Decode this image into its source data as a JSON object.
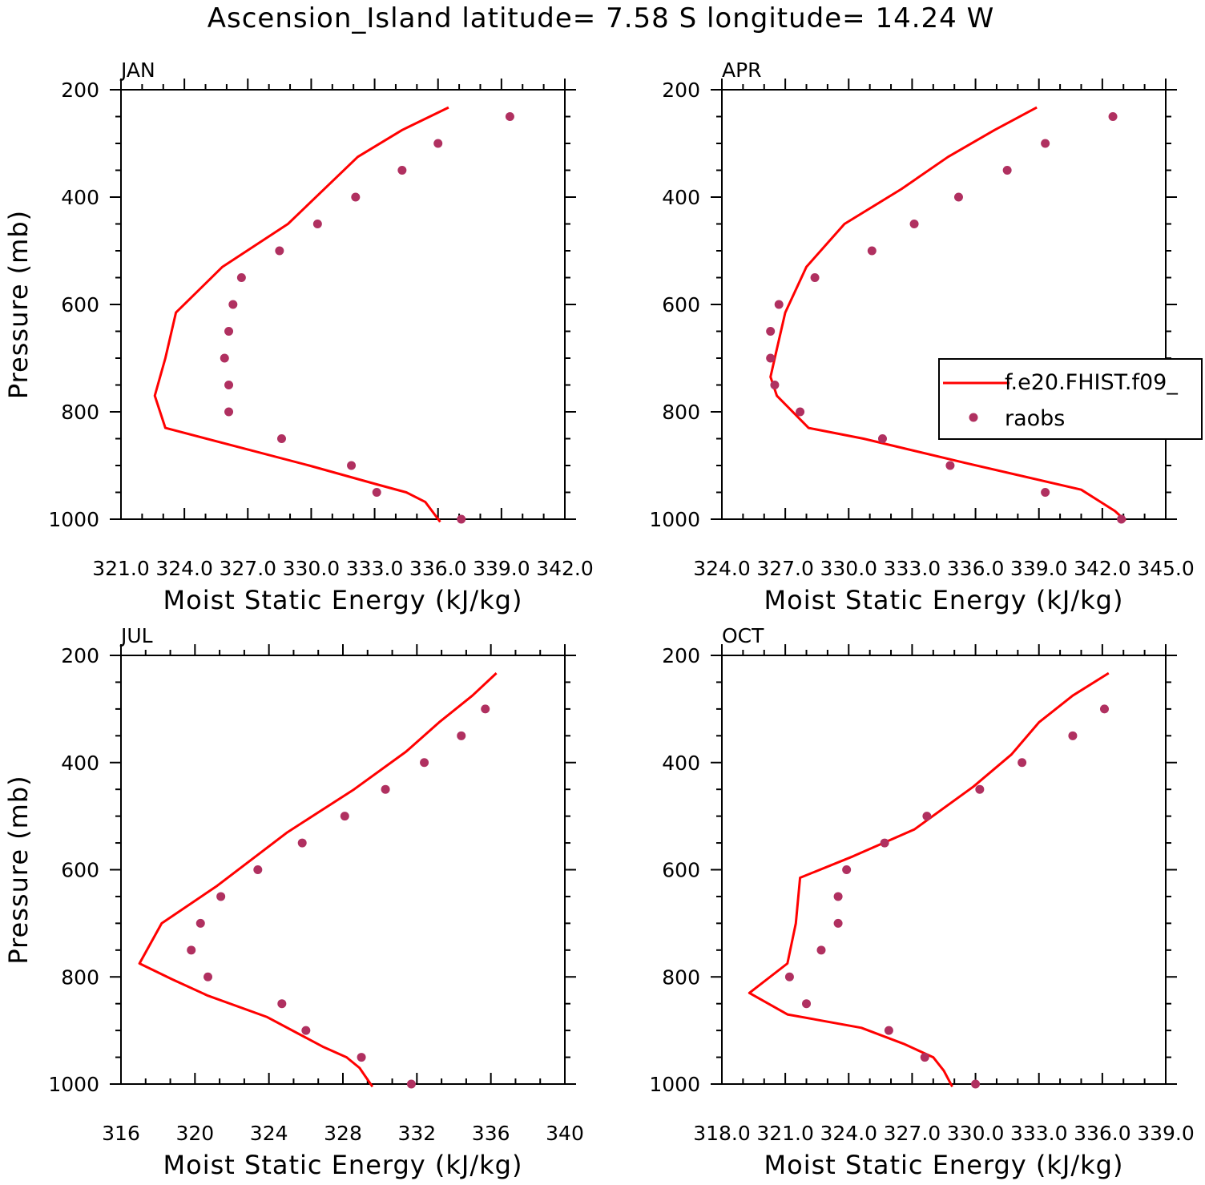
{
  "figure": {
    "title": "Ascension_Island  latitude= 7.58 S longitude= 14.24 W"
  },
  "legend": {
    "model_label": "f.e20.FHIST.f09_",
    "obs_label": "raobs"
  },
  "colors": {
    "model_line": "#ff0000",
    "obs_marker": "#b03060",
    "axes": "#000000"
  },
  "chart_data": [
    {
      "type": "line",
      "panel": "JAN",
      "xlabel": "Moist Static Energy (kJ/kg)",
      "ylabel": "Pressure (mb)",
      "xlim": [
        321.0,
        342.0
      ],
      "ylim": [
        200,
        1000
      ],
      "y_inverted": true,
      "xticks": [
        321.0,
        324.0,
        327.0,
        330.0,
        333.0,
        336.0,
        339.0,
        342.0
      ],
      "xtick_labels": [
        "321.0",
        "324.0",
        "327.0",
        "330.0",
        "333.0",
        "336.0",
        "339.0",
        "342.0"
      ],
      "yticks": [
        200,
        400,
        600,
        800,
        1000
      ],
      "ytick_labels": [
        "200",
        "400",
        "600",
        "800",
        "1000"
      ],
      "series": [
        {
          "name": "f.e20.FHIST.f09_",
          "kind": "line",
          "x": [
            336.5,
            334.3,
            332.2,
            328.9,
            325.8,
            323.6,
            323.1,
            322.6,
            323.1,
            329.9,
            333.1,
            334.5,
            335.4,
            336.1
          ],
          "y": [
            233,
            275,
            325,
            450,
            530,
            615,
            700,
            770,
            830,
            900,
            935,
            950,
            968,
            1005
          ]
        },
        {
          "name": "raobs",
          "kind": "scatter",
          "x": [
            339.4,
            336.0,
            334.3,
            332.1,
            330.3,
            328.5,
            326.7,
            326.3,
            326.1,
            325.9,
            326.1,
            326.1,
            328.6,
            331.9,
            333.1,
            337.1
          ],
          "y": [
            250,
            300,
            350,
            400,
            450,
            500,
            550,
            600,
            650,
            700,
            750,
            800,
            850,
            900,
            950,
            1000
          ]
        }
      ]
    },
    {
      "type": "line",
      "panel": "APR",
      "xlabel": "Moist Static Energy (kJ/kg)",
      "ylabel": "",
      "xlim": [
        324.0,
        345.0
      ],
      "ylim": [
        200,
        1000
      ],
      "y_inverted": true,
      "xticks": [
        324.0,
        327.0,
        330.0,
        333.0,
        336.0,
        339.0,
        342.0,
        345.0
      ],
      "xtick_labels": [
        "324.0",
        "327.0",
        "330.0",
        "333.0",
        "336.0",
        "339.0",
        "342.0",
        "345.0"
      ],
      "yticks": [
        200,
        400,
        600,
        800,
        1000
      ],
      "ytick_labels": [
        "200",
        "400",
        "600",
        "800",
        "1000"
      ],
      "series": [
        {
          "name": "f.e20.FHIST.f09_",
          "kind": "line",
          "x": [
            338.9,
            336.9,
            334.7,
            332.5,
            329.8,
            328.0,
            327.0,
            326.5,
            326.3,
            326.6,
            328.1,
            330.7,
            335.5,
            341.0,
            342.0,
            342.6,
            343.1
          ],
          "y": [
            233,
            275,
            325,
            385,
            450,
            530,
            615,
            700,
            735,
            770,
            830,
            850,
            895,
            945,
            970,
            985,
            1003
          ]
        },
        {
          "name": "raobs",
          "kind": "scatter",
          "x": [
            342.5,
            339.3,
            337.5,
            335.2,
            333.1,
            331.1,
            328.4,
            326.7,
            326.3,
            326.3,
            326.5,
            327.7,
            331.6,
            334.8,
            339.3,
            342.9
          ],
          "y": [
            250,
            300,
            350,
            400,
            450,
            500,
            550,
            600,
            650,
            700,
            750,
            800,
            850,
            900,
            950,
            1000
          ]
        }
      ]
    },
    {
      "type": "line",
      "panel": "JUL",
      "xlabel": "Moist Static Energy (kJ/kg)",
      "ylabel": "Pressure (mb)",
      "xlim": [
        316,
        340
      ],
      "ylim": [
        200,
        1000
      ],
      "y_inverted": true,
      "xticks": [
        316,
        320,
        324,
        328,
        332,
        336,
        340
      ],
      "xtick_labels": [
        "316",
        "320",
        "324",
        "328",
        "332",
        "336",
        "340"
      ],
      "yticks": [
        200,
        400,
        600,
        800,
        1000
      ],
      "ytick_labels": [
        "200",
        "400",
        "600",
        "800",
        "1000"
      ],
      "series": [
        {
          "name": "f.e20.FHIST.f09_",
          "kind": "line",
          "x": [
            336.3,
            335.0,
            333.2,
            331.4,
            328.6,
            325.0,
            321.2,
            318.2,
            317.0,
            318.8,
            320.7,
            323.9,
            326.9,
            328.2,
            328.9,
            329.2,
            329.6
          ],
          "y": [
            233,
            275,
            325,
            380,
            450,
            530,
            630,
            700,
            775,
            805,
            835,
            875,
            930,
            950,
            970,
            985,
            1005
          ]
        },
        {
          "name": "raobs",
          "kind": "scatter",
          "x": [
            335.7,
            334.4,
            332.4,
            330.3,
            328.1,
            325.8,
            323.4,
            321.4,
            320.3,
            319.8,
            320.7,
            324.7,
            326.0,
            329.0,
            331.7
          ],
          "y": [
            300,
            350,
            400,
            450,
            500,
            550,
            600,
            650,
            700,
            750,
            800,
            850,
            900,
            950,
            1000
          ]
        }
      ]
    },
    {
      "type": "line",
      "panel": "OCT",
      "xlabel": "Moist Static Energy (kJ/kg)",
      "ylabel": "",
      "xlim": [
        318.0,
        339.0
      ],
      "ylim": [
        200,
        1000
      ],
      "y_inverted": true,
      "xticks": [
        318.0,
        321.0,
        324.0,
        327.0,
        330.0,
        333.0,
        336.0,
        339.0
      ],
      "xtick_labels": [
        "318.0",
        "321.0",
        "324.0",
        "327.0",
        "330.0",
        "333.0",
        "336.0",
        "339.0"
      ],
      "yticks": [
        200,
        400,
        600,
        800,
        1000
      ],
      "ytick_labels": [
        "200",
        "400",
        "600",
        "800",
        "1000"
      ],
      "series": [
        {
          "name": "f.e20.FHIST.f09_",
          "kind": "line",
          "x": [
            336.3,
            334.6,
            333.0,
            331.7,
            329.9,
            327.1,
            324.2,
            321.7,
            321.5,
            321.1,
            319.3,
            321.1,
            324.6,
            326.6,
            328.0,
            328.5,
            328.9
          ],
          "y": [
            233,
            275,
            325,
            385,
            445,
            525,
            575,
            615,
            700,
            775,
            830,
            870,
            895,
            925,
            950,
            975,
            1005
          ]
        },
        {
          "name": "raobs",
          "kind": "scatter",
          "x": [
            336.1,
            334.6,
            332.2,
            330.2,
            327.7,
            325.7,
            323.9,
            323.5,
            323.5,
            322.7,
            321.2,
            322.0,
            325.9,
            327.6,
            330.0
          ],
          "y": [
            300,
            350,
            400,
            450,
            500,
            550,
            600,
            650,
            700,
            750,
            800,
            850,
            900,
            950,
            1000
          ]
        }
      ]
    }
  ]
}
